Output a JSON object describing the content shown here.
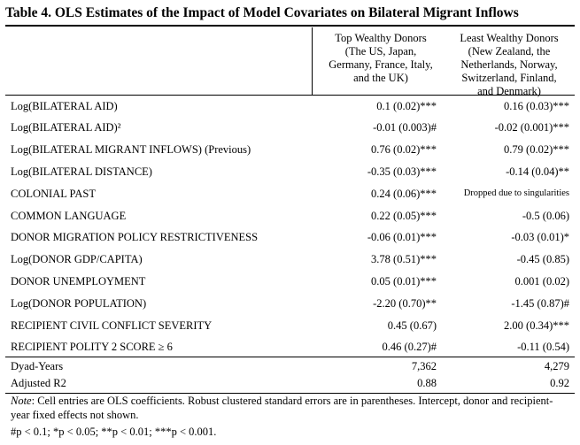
{
  "title": "Table 4. OLS Estimates of the Impact of Model Covariates on Bilateral Migrant Inflows",
  "columns": [
    {
      "lines": [
        "Top Wealthy Donors",
        "(The US, Japan,",
        "Germany, France, Italy,",
        "and the UK)"
      ]
    },
    {
      "lines": [
        "Least Wealthy Donors",
        "(New Zealand, the",
        "Netherlands, Norway,",
        "Switzerland, Finland,",
        "and Denmark)"
      ]
    }
  ],
  "rows": [
    {
      "label": "Log(BILATERAL AID)",
      "a": "0.1 (0.02)***",
      "b": "0.16 (0.03)***"
    },
    {
      "label": "Log(BILATERAL AID)²",
      "a": "-0.01 (0.003)#",
      "b": "-0.02 (0.001)***"
    },
    {
      "label": "Log(BILATERAL MIGRANT INFLOWS) (Previous)",
      "a": "0.76 (0.02)***",
      "b": "0.79 (0.02)***"
    },
    {
      "label": "Log(BILATERAL DISTANCE)",
      "a": "-0.35 (0.03)***",
      "b": "-0.14 (0.04)**"
    },
    {
      "label": "COLONIAL PAST",
      "a": "0.24 (0.06)***",
      "b": "Dropped due to singularities"
    },
    {
      "label": "COMMON LANGUAGE",
      "a": "0.22 (0.05)***",
      "b": "-0.5 (0.06)"
    },
    {
      "label": "DONOR MIGRATION POLICY RESTRICTIVENESS",
      "a": "-0.06 (0.01)***",
      "b": "-0.03 (0.01)*"
    },
    {
      "label": "Log(DONOR GDP/CAPITA)",
      "a": "3.78 (0.51)***",
      "b": "-0.45 (0.85)"
    },
    {
      "label": "DONOR UNEMPLOYMENT",
      "a": "0.05 (0.01)***",
      "b": "0.001 (0.02)"
    },
    {
      "label": "Log(DONOR POPULATION)",
      "a": "-2.20 (0.70)**",
      "b": "-1.45 (0.87)#"
    },
    {
      "label": "RECIPIENT CIVIL CONFLICT SEVERITY",
      "a": "0.45 (0.67)",
      "b": "2.00 (0.34)***"
    },
    {
      "label": "RECIPIENT POLITY 2 SCORE ≥ 6",
      "a": "0.46 (0.27)#",
      "b": "-0.11 (0.54)"
    }
  ],
  "footer_rows": [
    {
      "label": "Dyad-Years",
      "a": "7,362",
      "b": "4,279"
    },
    {
      "label": "Adjusted R2",
      "a": "0.88",
      "b": "0.92"
    }
  ],
  "note_label": "Note",
  "note_text": ": Cell entries are OLS coefficients. Robust clustered standard errors are in parentheses. Intercept, donor and recipient-year fixed effects not shown.",
  "significance": "#p < 0.1; *p < 0.05; **p < 0.01; ***p < 0.001."
}
